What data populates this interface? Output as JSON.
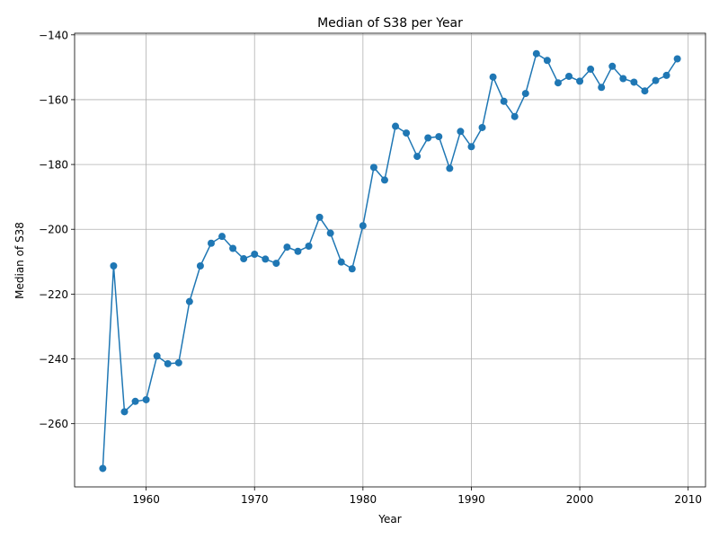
{
  "chart_data": {
    "type": "line",
    "title": "Median of S38 per Year",
    "xlabel": "Year",
    "ylabel": "Median of S38",
    "xlim": [
      1953.4,
      2011.6
    ],
    "ylim": [
      -279.5,
      -139.5
    ],
    "xticks": [
      1960,
      1970,
      1980,
      1990,
      2000,
      2010
    ],
    "yticks": [
      -260,
      -240,
      -220,
      -200,
      -180,
      -160,
      -140
    ],
    "grid": true,
    "markers": "circle",
    "color": "#1f77b4",
    "series": [
      {
        "x": [
          1956,
          1957,
          1958,
          1959,
          1960,
          1961,
          1962,
          1963,
          1964,
          1965,
          1966,
          1967,
          1968,
          1969,
          1970,
          1971,
          1972,
          1973,
          1974,
          1975,
          1976,
          1977,
          1978,
          1979,
          1980,
          1981,
          1982,
          1983,
          1984,
          1985,
          1986,
          1987,
          1988,
          1989,
          1990,
          1991,
          1992,
          1993,
          1994,
          1995,
          1996,
          1997,
          1998,
          1999,
          2000,
          2001,
          2002,
          2003,
          2004,
          2005,
          2006,
          2007,
          2008,
          2009
        ],
        "values": [
          -273.8,
          -211.3,
          -256.3,
          -253.1,
          -252.6,
          -239.1,
          -241.5,
          -241.2,
          -222.3,
          -211.3,
          -204.3,
          -202.2,
          -205.9,
          -209.1,
          -207.7,
          -209.2,
          -210.5,
          -205.5,
          -206.8,
          -205.2,
          -196.3,
          -201.2,
          -210.1,
          -212.2,
          -198.9,
          -180.9,
          -184.8,
          -168.2,
          -170.3,
          -177.5,
          -171.8,
          -171.4,
          -181.2,
          -169.8,
          -174.5,
          -168.6,
          -153.0,
          -160.5,
          -165.2,
          -158.1,
          -145.8,
          -147.9,
          -154.8,
          -152.8,
          -154.3,
          -150.6,
          -156.2,
          -149.7,
          -153.5,
          -154.6,
          -157.3,
          -154.1,
          -152.5,
          -147.4
        ]
      }
    ]
  }
}
